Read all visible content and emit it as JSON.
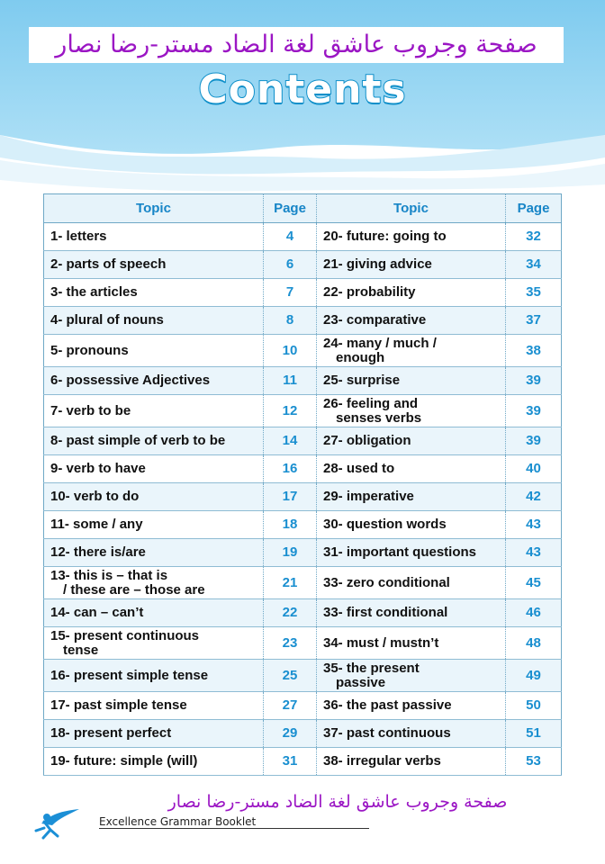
{
  "banner_arabic": "صفحة وجروب عاشق لغة الضاد مستر-رضا نصار",
  "title": "Contents",
  "headers": {
    "topic": "Topic",
    "page": "Page"
  },
  "rows": [
    {
      "left": [
        "1- letters"
      ],
      "lp": "4",
      "right": [
        "20- future: going to"
      ],
      "rp": "32"
    },
    {
      "left": [
        "2- parts of speech"
      ],
      "lp": "6",
      "right": [
        "21- giving advice"
      ],
      "rp": "34"
    },
    {
      "left": [
        "3- the articles"
      ],
      "lp": "7",
      "right": [
        "22- probability"
      ],
      "rp": "35"
    },
    {
      "left": [
        "4- plural of nouns"
      ],
      "lp": "8",
      "right": [
        "23- comparative"
      ],
      "rp": "37"
    },
    {
      "left": [
        "5- pronouns"
      ],
      "lp": "10",
      "right": [
        "24- many / much /",
        "enough"
      ],
      "rp": "38"
    },
    {
      "left": [
        "6- possessive Adjectives"
      ],
      "lp": "11",
      "right": [
        "25- surprise"
      ],
      "rp": "39"
    },
    {
      "left": [
        "7- verb to be"
      ],
      "lp": "12",
      "right": [
        "26- feeling and",
        "senses verbs"
      ],
      "rp": "39"
    },
    {
      "left": [
        "8- past simple of verb to be"
      ],
      "lp": "14",
      "right": [
        "27- obligation"
      ],
      "rp": "39"
    },
    {
      "left": [
        "9- verb to have"
      ],
      "lp": "16",
      "right": [
        "28- used to"
      ],
      "rp": "40"
    },
    {
      "left": [
        "10- verb to do"
      ],
      "lp": "17",
      "right": [
        "29- imperative"
      ],
      "rp": "42"
    },
    {
      "left": [
        "11- some / any"
      ],
      "lp": "18",
      "right": [
        "30- question words"
      ],
      "rp": "43"
    },
    {
      "left": [
        "12- there is/are"
      ],
      "lp": "19",
      "right": [
        "31- important questions"
      ],
      "rp": "43"
    },
    {
      "left": [
        "13- this is – that is",
        "/ these are – those are"
      ],
      "lp": "21",
      "right": [
        "33- zero conditional"
      ],
      "rp": "45"
    },
    {
      "left": [
        "14- can – can’t"
      ],
      "lp": "22",
      "right": [
        "33- first conditional"
      ],
      "rp": "46"
    },
    {
      "left": [
        "15- present continuous",
        "tense"
      ],
      "lp": "23",
      "right": [
        "34- must / mustn’t"
      ],
      "rp": "48"
    },
    {
      "left": [
        "16- present simple tense"
      ],
      "lp": "25",
      "right": [
        "35- the present",
        "passive"
      ],
      "rp": "49"
    },
    {
      "left": [
        "17- past simple tense"
      ],
      "lp": "27",
      "right": [
        "36- the past passive"
      ],
      "rp": "50"
    },
    {
      "left": [
        "18- present perfect"
      ],
      "lp": "29",
      "right": [
        "37- past continuous"
      ],
      "rp": "51"
    },
    {
      "left": [
        "19- future: simple (will)"
      ],
      "lp": "31",
      "right": [
        "38- irregular verbs"
      ],
      "rp": "53"
    }
  ],
  "footer_arabic": "صفحة وجروب عاشق لغة الضاد مستر-رضا نصار",
  "footer_text": "Excellence Grammar Booklet",
  "colors": {
    "accent": "#1785c7",
    "arabic": "#9b16c4",
    "sky": "#8fd1f0"
  }
}
